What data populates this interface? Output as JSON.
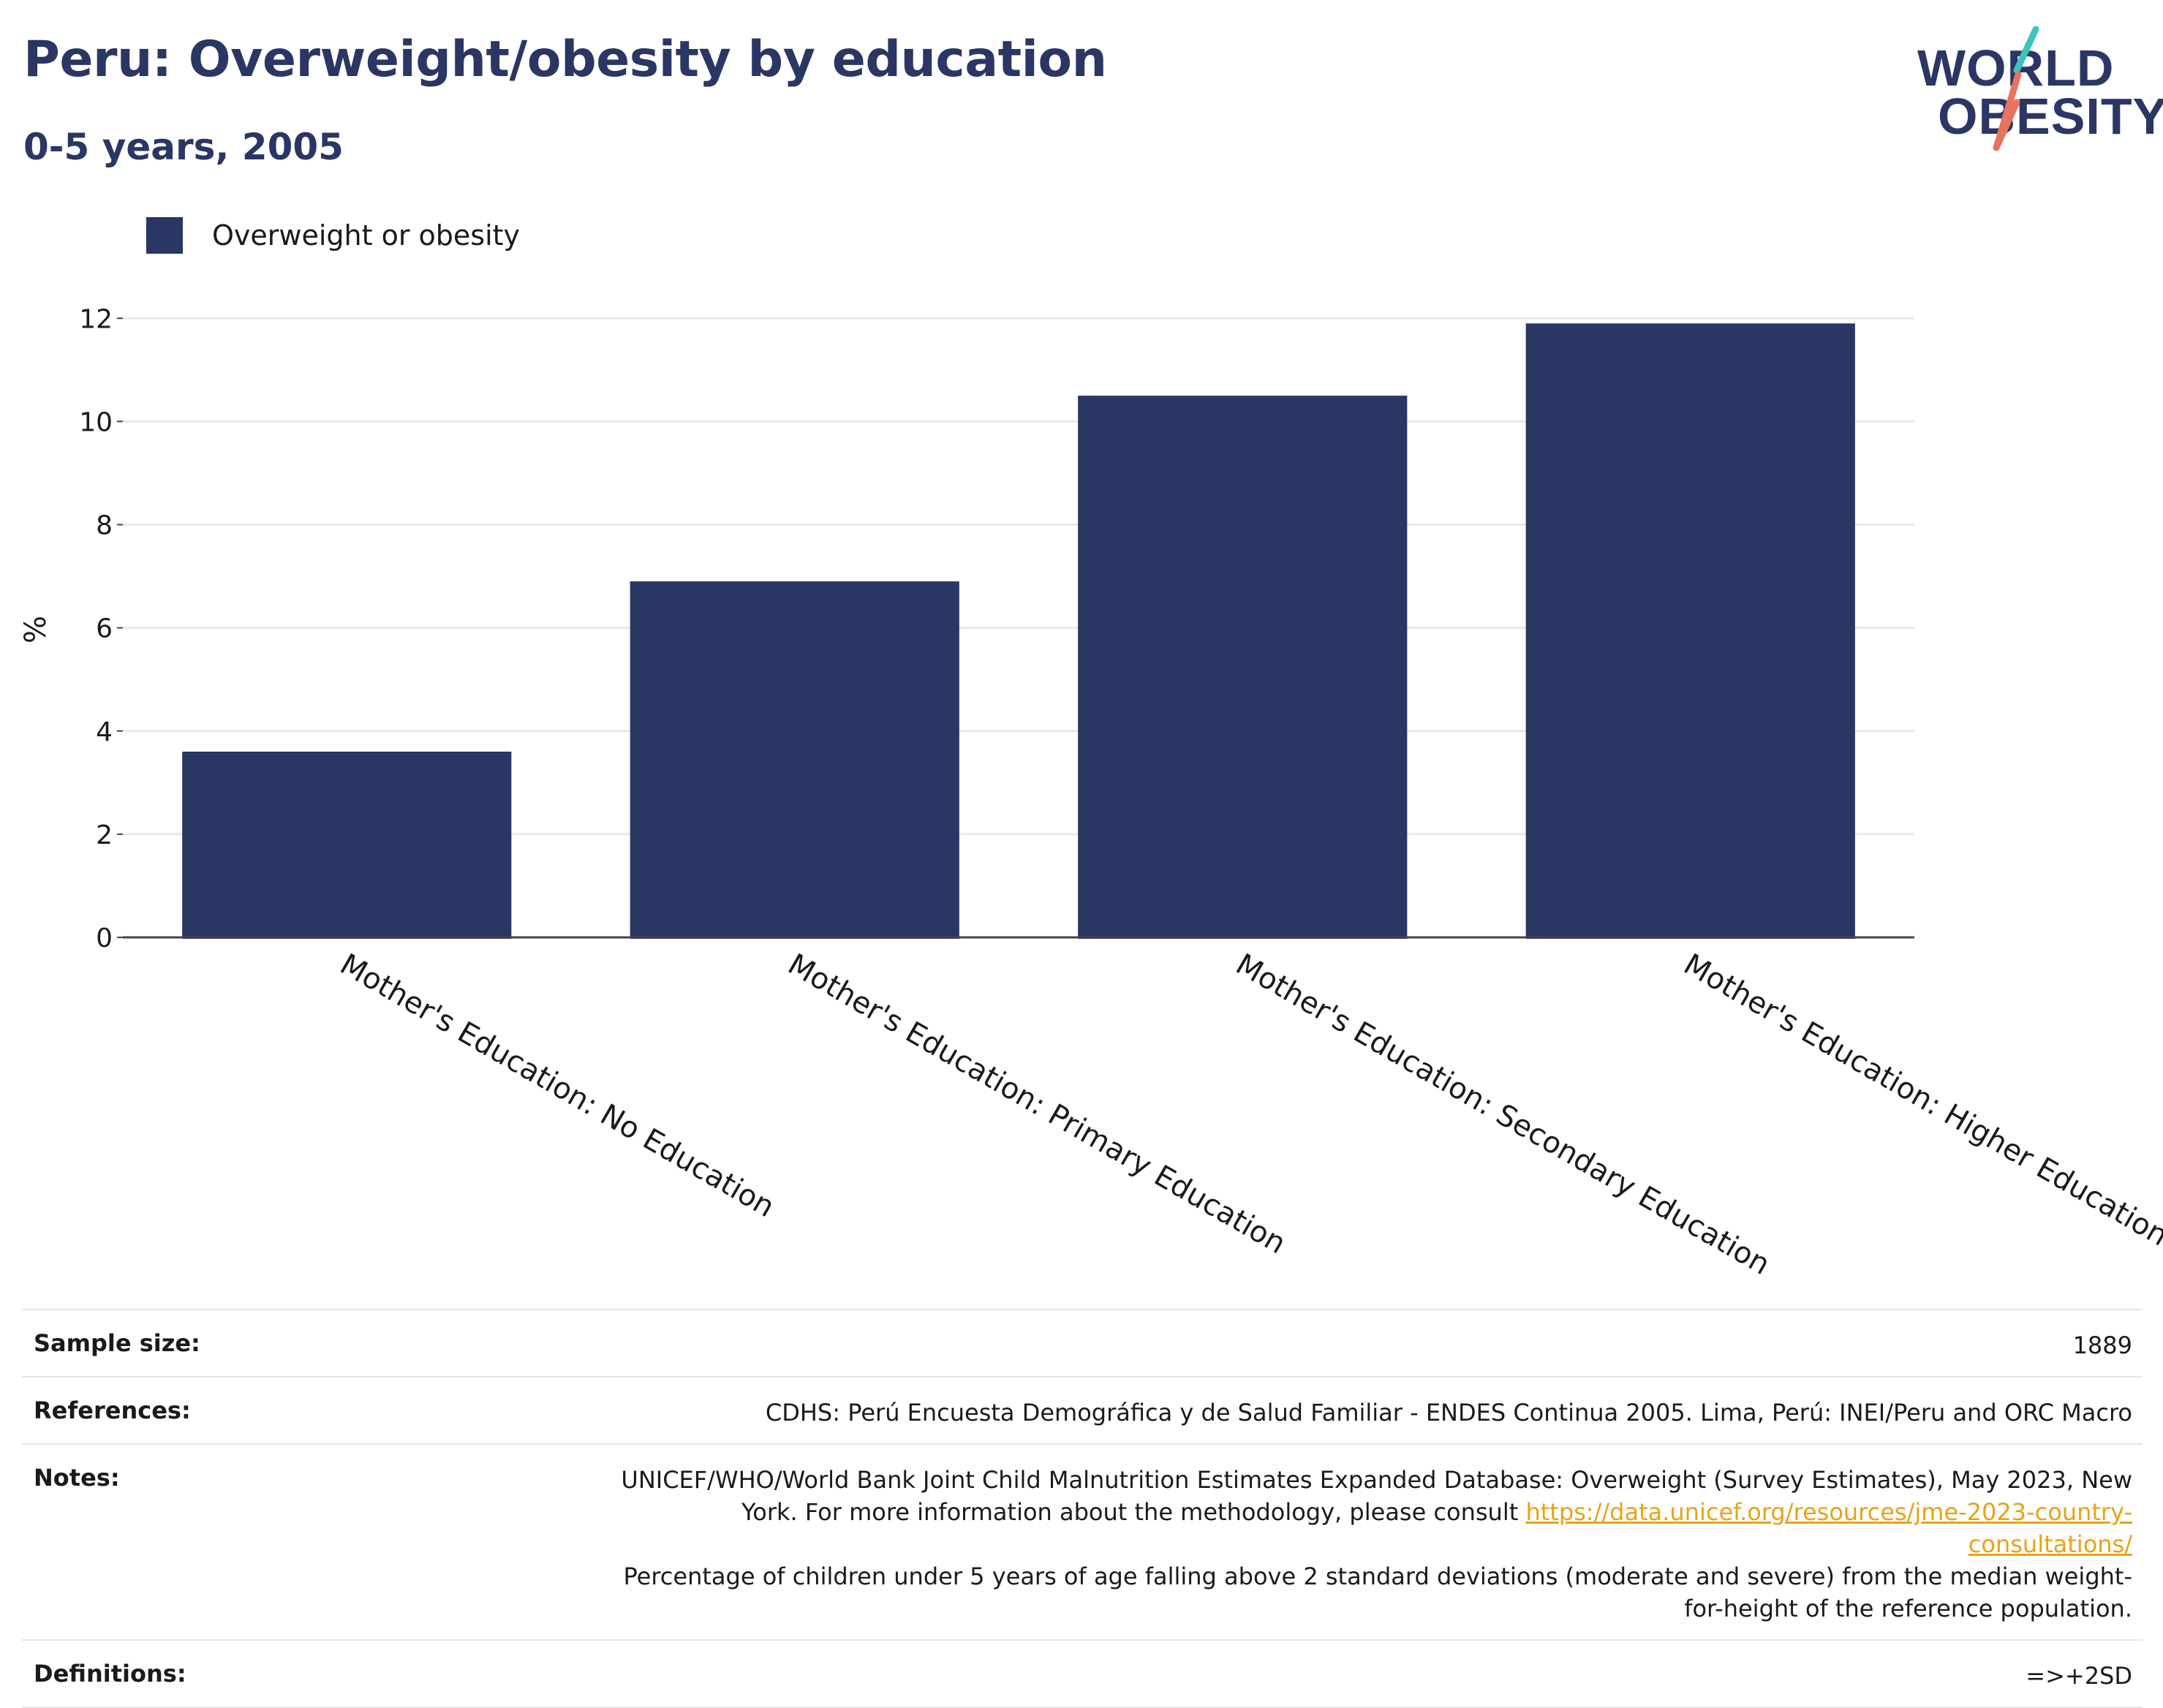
{
  "header": {
    "title": "Peru: Overweight/obesity by education",
    "subtitle": "0-5 years, 2005"
  },
  "logo": {
    "line1": "WORLD",
    "line2": "OBESITY"
  },
  "legend": {
    "label": "Overweight or obesity",
    "color": "#2a3663"
  },
  "chart_data": {
    "type": "bar",
    "categories": [
      "Mother's Education: No Education",
      "Mother's Education: Primary Education",
      "Mother's Education: Secondary Education",
      "Mother's Education: Higher Education"
    ],
    "series": [
      {
        "name": "Overweight or obesity",
        "values": [
          3.6,
          6.9,
          10.5,
          11.9
        ],
        "color": "#2a3663"
      }
    ],
    "ylabel": "%",
    "ylim": [
      0,
      12.5
    ],
    "yticks": [
      0,
      2,
      4,
      6,
      8,
      10,
      12
    ],
    "grid": true,
    "legend_position": "top-left"
  },
  "info": {
    "sample_size_label": "Sample size:",
    "sample_size_value": "1889",
    "references_label": "References:",
    "references_value": "CDHS: Perú Encuesta Demográfica y de Salud Familiar - ENDES Continua 2005. Lima, Perú: INEI/Peru and ORC Macro",
    "notes_label": "Notes:",
    "notes_text_1": "UNICEF/WHO/World Bank Joint Child Malnutrition Estimates Expanded Database: Overweight (Survey Estimates), May 2023, New York. For more information about the methodology, please consult ",
    "notes_link": "https://data.unicef.org/resources/jme-2023-country-consultations/",
    "notes_text_2": "Percentage of children under 5 years of age falling above 2 standard deviations (moderate and severe) from the median weight-for-height of the reference population.",
    "definitions_label": "Definitions:",
    "definitions_value": "=>+2SD"
  }
}
